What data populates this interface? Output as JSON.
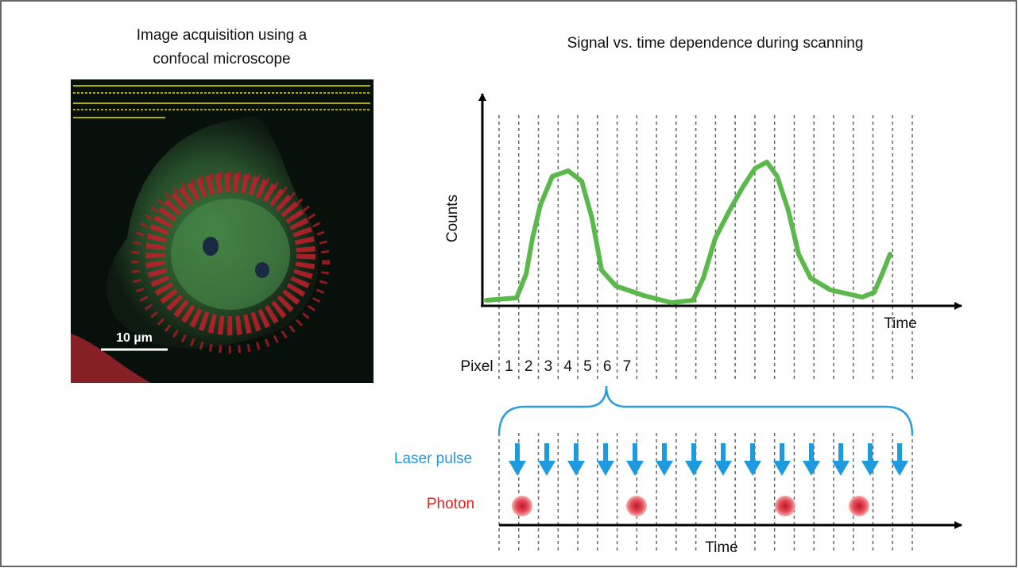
{
  "left_panel": {
    "title_lines": [
      "Image acquisition using a",
      "confocal microscope"
    ],
    "scale_bar": "10 µm"
  },
  "right_panel": {
    "title": "Signal vs. time dependence during scanning",
    "y_axis_label": "Counts",
    "x_axis_label": "Time",
    "pixel_label": "Pixel",
    "pixel_numbers": [
      "1",
      "2",
      "3",
      "4",
      "5",
      "6",
      "7"
    ],
    "laser_label": "Laser pulse",
    "photon_label": "Photon",
    "bottom_axis_label": "Time"
  }
}
